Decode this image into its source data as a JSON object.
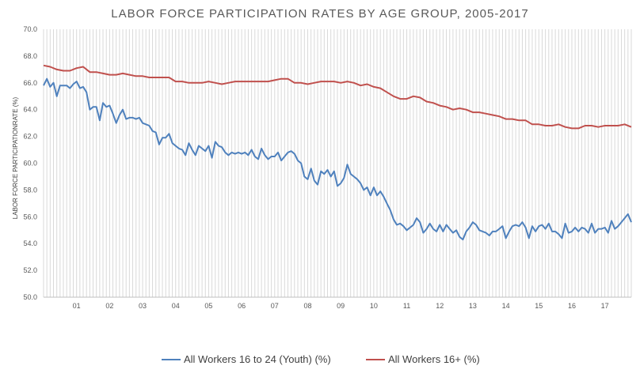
{
  "chart_data": {
    "type": "line",
    "title": "LABOR FORCE PARTICIPATION  RATES  BY  AGE GROUP,  2005-2017",
    "xlabel": "",
    "ylabel": "LABOR FORCE PARTICIPATIONRATE (%)",
    "ylim": [
      50.0,
      70.0
    ],
    "y_ticks": [
      "50.0",
      "52.0",
      "54.0",
      "56.0",
      "58.0",
      "60.0",
      "62.0",
      "64.0",
      "66.0",
      "68.0",
      "70.0"
    ],
    "x_ticks": [
      "01",
      "02",
      "03",
      "04",
      "05",
      "06",
      "07",
      "08",
      "09",
      "10",
      "11",
      "12",
      "13",
      "14",
      "15",
      "16",
      "17"
    ],
    "x_range": [
      0,
      17.8
    ],
    "grid": "vertical lines at every data point",
    "legend_position": "bottom",
    "series": [
      {
        "name": "All Workers 16 to 24 (Youth) (%)",
        "color": "#4f81bd",
        "points": [
          [
            0.0,
            65.8
          ],
          [
            0.1,
            66.3
          ],
          [
            0.2,
            65.7
          ],
          [
            0.3,
            66.0
          ],
          [
            0.4,
            65.0
          ],
          [
            0.5,
            65.8
          ],
          [
            0.6,
            65.8
          ],
          [
            0.7,
            65.8
          ],
          [
            0.8,
            65.6
          ],
          [
            0.9,
            65.9
          ],
          [
            1.0,
            66.1
          ],
          [
            1.1,
            65.6
          ],
          [
            1.2,
            65.7
          ],
          [
            1.3,
            65.3
          ],
          [
            1.4,
            64.0
          ],
          [
            1.5,
            64.2
          ],
          [
            1.6,
            64.2
          ],
          [
            1.7,
            63.2
          ],
          [
            1.8,
            64.5
          ],
          [
            1.9,
            64.2
          ],
          [
            2.0,
            64.3
          ],
          [
            2.1,
            63.7
          ],
          [
            2.2,
            63.0
          ],
          [
            2.3,
            63.6
          ],
          [
            2.4,
            64.0
          ],
          [
            2.5,
            63.3
          ],
          [
            2.6,
            63.4
          ],
          [
            2.7,
            63.4
          ],
          [
            2.8,
            63.3
          ],
          [
            2.9,
            63.4
          ],
          [
            3.0,
            63.0
          ],
          [
            3.1,
            62.9
          ],
          [
            3.2,
            62.8
          ],
          [
            3.3,
            62.4
          ],
          [
            3.4,
            62.3
          ],
          [
            3.5,
            61.4
          ],
          [
            3.6,
            61.9
          ],
          [
            3.7,
            61.9
          ],
          [
            3.8,
            62.2
          ],
          [
            3.9,
            61.5
          ],
          [
            4.0,
            61.3
          ],
          [
            4.1,
            61.1
          ],
          [
            4.2,
            61.0
          ],
          [
            4.3,
            60.6
          ],
          [
            4.4,
            61.5
          ],
          [
            4.5,
            61.0
          ],
          [
            4.6,
            60.6
          ],
          [
            4.7,
            61.3
          ],
          [
            4.8,
            61.1
          ],
          [
            4.9,
            60.9
          ],
          [
            5.0,
            61.3
          ],
          [
            5.1,
            60.4
          ],
          [
            5.2,
            61.6
          ],
          [
            5.3,
            61.3
          ],
          [
            5.4,
            61.2
          ],
          [
            5.5,
            60.8
          ],
          [
            5.6,
            60.6
          ],
          [
            5.7,
            60.8
          ],
          [
            5.8,
            60.7
          ],
          [
            5.9,
            60.8
          ],
          [
            6.0,
            60.7
          ],
          [
            6.1,
            60.8
          ],
          [
            6.2,
            60.6
          ],
          [
            6.3,
            61.0
          ],
          [
            6.4,
            60.5
          ],
          [
            6.5,
            60.3
          ],
          [
            6.6,
            61.1
          ],
          [
            6.7,
            60.6
          ],
          [
            6.8,
            60.3
          ],
          [
            6.9,
            60.5
          ],
          [
            7.0,
            60.5
          ],
          [
            7.1,
            60.8
          ],
          [
            7.2,
            60.2
          ],
          [
            7.3,
            60.5
          ],
          [
            7.4,
            60.8
          ],
          [
            7.5,
            60.9
          ],
          [
            7.6,
            60.7
          ],
          [
            7.7,
            60.2
          ],
          [
            7.8,
            60.0
          ],
          [
            7.9,
            59.0
          ],
          [
            8.0,
            58.8
          ],
          [
            8.1,
            59.6
          ],
          [
            8.2,
            58.7
          ],
          [
            8.3,
            58.4
          ],
          [
            8.4,
            59.4
          ],
          [
            8.5,
            59.2
          ],
          [
            8.6,
            59.5
          ],
          [
            8.7,
            59.0
          ],
          [
            8.8,
            59.4
          ],
          [
            8.9,
            58.3
          ],
          [
            9.0,
            58.5
          ],
          [
            9.1,
            58.9
          ],
          [
            9.2,
            59.9
          ],
          [
            9.3,
            59.2
          ],
          [
            9.4,
            59.0
          ],
          [
            9.5,
            58.8
          ],
          [
            9.6,
            58.5
          ],
          [
            9.7,
            58.0
          ],
          [
            9.8,
            58.2
          ],
          [
            9.9,
            57.6
          ],
          [
            10.0,
            58.2
          ],
          [
            10.1,
            57.6
          ],
          [
            10.2,
            57.9
          ],
          [
            10.3,
            57.5
          ],
          [
            10.4,
            57.0
          ],
          [
            10.5,
            56.5
          ],
          [
            10.6,
            55.8
          ],
          [
            10.7,
            55.4
          ],
          [
            10.8,
            55.5
          ],
          [
            10.9,
            55.3
          ],
          [
            11.0,
            55.0
          ],
          [
            11.1,
            55.2
          ],
          [
            11.2,
            55.4
          ],
          [
            11.3,
            55.9
          ],
          [
            11.4,
            55.6
          ],
          [
            11.5,
            54.8
          ],
          [
            11.6,
            55.1
          ],
          [
            11.7,
            55.5
          ],
          [
            11.8,
            55.1
          ],
          [
            11.9,
            54.9
          ],
          [
            12.0,
            55.4
          ],
          [
            12.1,
            54.9
          ],
          [
            12.2,
            55.4
          ],
          [
            12.3,
            55.1
          ],
          [
            12.4,
            54.8
          ],
          [
            12.5,
            55.0
          ],
          [
            12.6,
            54.5
          ],
          [
            12.7,
            54.3
          ],
          [
            12.8,
            54.9
          ],
          [
            12.9,
            55.2
          ],
          [
            13.0,
            55.6
          ],
          [
            13.1,
            55.4
          ],
          [
            13.2,
            55.0
          ],
          [
            13.3,
            54.9
          ],
          [
            13.4,
            54.8
          ],
          [
            13.5,
            54.6
          ],
          [
            13.6,
            54.9
          ],
          [
            13.7,
            54.9
          ],
          [
            13.8,
            55.1
          ],
          [
            13.9,
            55.3
          ],
          [
            14.0,
            54.4
          ],
          [
            14.1,
            54.9
          ],
          [
            14.2,
            55.3
          ],
          [
            14.3,
            55.4
          ],
          [
            14.4,
            55.3
          ],
          [
            14.5,
            55.6
          ],
          [
            14.6,
            55.2
          ],
          [
            14.7,
            54.4
          ],
          [
            14.8,
            55.3
          ],
          [
            14.9,
            54.9
          ],
          [
            15.0,
            55.3
          ],
          [
            15.1,
            55.4
          ],
          [
            15.2,
            55.1
          ],
          [
            15.3,
            55.5
          ],
          [
            15.4,
            54.9
          ],
          [
            15.5,
            54.9
          ],
          [
            15.6,
            54.7
          ],
          [
            15.7,
            54.4
          ],
          [
            15.8,
            55.5
          ],
          [
            15.9,
            54.8
          ],
          [
            16.0,
            54.9
          ],
          [
            16.1,
            55.2
          ],
          [
            16.2,
            54.9
          ],
          [
            16.3,
            55.2
          ],
          [
            16.4,
            55.1
          ],
          [
            16.5,
            54.8
          ],
          [
            16.6,
            55.5
          ],
          [
            16.7,
            54.8
          ],
          [
            16.8,
            55.1
          ],
          [
            16.9,
            55.1
          ],
          [
            17.0,
            55.2
          ],
          [
            17.1,
            54.8
          ],
          [
            17.2,
            55.7
          ],
          [
            17.3,
            55.1
          ],
          [
            17.4,
            55.3
          ],
          [
            17.5,
            55.6
          ],
          [
            17.6,
            55.9
          ],
          [
            17.7,
            56.2
          ],
          [
            17.8,
            55.6
          ]
        ]
      },
      {
        "name": "All Workers 16+ (%)",
        "color": "#c0504d",
        "points": [
          [
            0.0,
            67.3
          ],
          [
            0.2,
            67.2
          ],
          [
            0.4,
            67.0
          ],
          [
            0.6,
            66.9
          ],
          [
            0.8,
            66.9
          ],
          [
            1.0,
            67.1
          ],
          [
            1.2,
            67.2
          ],
          [
            1.4,
            66.8
          ],
          [
            1.6,
            66.8
          ],
          [
            1.8,
            66.7
          ],
          [
            2.0,
            66.6
          ],
          [
            2.2,
            66.6
          ],
          [
            2.4,
            66.7
          ],
          [
            2.6,
            66.6
          ],
          [
            2.8,
            66.5
          ],
          [
            3.0,
            66.5
          ],
          [
            3.2,
            66.4
          ],
          [
            3.4,
            66.4
          ],
          [
            3.6,
            66.4
          ],
          [
            3.8,
            66.4
          ],
          [
            4.0,
            66.1
          ],
          [
            4.2,
            66.1
          ],
          [
            4.4,
            66.0
          ],
          [
            4.6,
            66.0
          ],
          [
            4.8,
            66.0
          ],
          [
            5.0,
            66.1
          ],
          [
            5.2,
            66.0
          ],
          [
            5.4,
            65.9
          ],
          [
            5.6,
            66.0
          ],
          [
            5.8,
            66.1
          ],
          [
            6.0,
            66.1
          ],
          [
            6.2,
            66.1
          ],
          [
            6.4,
            66.1
          ],
          [
            6.6,
            66.1
          ],
          [
            6.8,
            66.1
          ],
          [
            7.0,
            66.2
          ],
          [
            7.2,
            66.3
          ],
          [
            7.4,
            66.3
          ],
          [
            7.6,
            66.0
          ],
          [
            7.8,
            66.0
          ],
          [
            8.0,
            65.9
          ],
          [
            8.2,
            66.0
          ],
          [
            8.4,
            66.1
          ],
          [
            8.6,
            66.1
          ],
          [
            8.8,
            66.1
          ],
          [
            9.0,
            66.0
          ],
          [
            9.2,
            66.1
          ],
          [
            9.4,
            66.0
          ],
          [
            9.6,
            65.8
          ],
          [
            9.8,
            65.9
          ],
          [
            10.0,
            65.7
          ],
          [
            10.2,
            65.6
          ],
          [
            10.4,
            65.3
          ],
          [
            10.6,
            65.0
          ],
          [
            10.8,
            64.8
          ],
          [
            11.0,
            64.8
          ],
          [
            11.2,
            65.0
          ],
          [
            11.4,
            64.9
          ],
          [
            11.6,
            64.6
          ],
          [
            11.8,
            64.5
          ],
          [
            12.0,
            64.3
          ],
          [
            12.2,
            64.2
          ],
          [
            12.4,
            64.0
          ],
          [
            12.6,
            64.1
          ],
          [
            12.8,
            64.0
          ],
          [
            13.0,
            63.8
          ],
          [
            13.2,
            63.8
          ],
          [
            13.4,
            63.7
          ],
          [
            13.6,
            63.6
          ],
          [
            13.8,
            63.5
          ],
          [
            14.0,
            63.3
          ],
          [
            14.2,
            63.3
          ],
          [
            14.4,
            63.2
          ],
          [
            14.6,
            63.2
          ],
          [
            14.8,
            62.9
          ],
          [
            15.0,
            62.9
          ],
          [
            15.2,
            62.8
          ],
          [
            15.4,
            62.8
          ],
          [
            15.6,
            62.9
          ],
          [
            15.8,
            62.7
          ],
          [
            16.0,
            62.6
          ],
          [
            16.2,
            62.6
          ],
          [
            16.4,
            62.8
          ],
          [
            16.6,
            62.8
          ],
          [
            16.8,
            62.7
          ],
          [
            17.0,
            62.8
          ],
          [
            17.2,
            62.8
          ],
          [
            17.4,
            62.8
          ],
          [
            17.6,
            62.9
          ],
          [
            17.8,
            62.7
          ]
        ]
      }
    ]
  }
}
